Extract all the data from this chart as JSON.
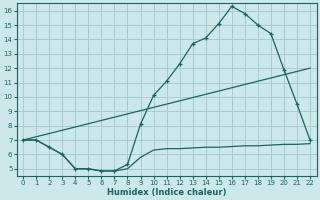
{
  "bg_color": "#cce8e8",
  "grid_color": "#aacccc",
  "line_color": "#1a6464",
  "xlabel": "Humidex (Indice chaleur)",
  "xlim": [
    -0.5,
    22.5
  ],
  "ylim": [
    4.5,
    16.5
  ],
  "xticks": [
    0,
    1,
    2,
    3,
    4,
    5,
    6,
    7,
    8,
    9,
    10,
    11,
    12,
    13,
    14,
    15,
    16,
    17,
    18,
    19,
    20,
    21,
    22
  ],
  "yticks": [
    5,
    6,
    7,
    8,
    9,
    10,
    11,
    12,
    13,
    14,
    15,
    16
  ],
  "line1_x": [
    0,
    1,
    2,
    3,
    4,
    5,
    6,
    7,
    8,
    9,
    10,
    11,
    12,
    13,
    14,
    15,
    16,
    17,
    18,
    19,
    20,
    21,
    22
  ],
  "line1_y": [
    7.0,
    7.0,
    6.5,
    6.0,
    5.0,
    5.0,
    4.85,
    4.85,
    5.3,
    8.1,
    10.1,
    11.1,
    12.3,
    13.7,
    14.1,
    15.1,
    16.3,
    15.8,
    15.0,
    14.4,
    11.9,
    9.5,
    7.0
  ],
  "line2_x": [
    0,
    1,
    2,
    3,
    4,
    5,
    6,
    7,
    8,
    9,
    10,
    11,
    12,
    13,
    14,
    15,
    16,
    17,
    18,
    19,
    20,
    21,
    22
  ],
  "line2_y": [
    7.0,
    7.0,
    6.5,
    6.0,
    5.0,
    5.0,
    4.85,
    4.85,
    5.0,
    5.8,
    6.3,
    6.4,
    6.4,
    6.45,
    6.5,
    6.5,
    6.55,
    6.6,
    6.6,
    6.65,
    6.7,
    6.7,
    6.75
  ],
  "line3_x": [
    0,
    22
  ],
  "line3_y": [
    7.0,
    12.0
  ]
}
